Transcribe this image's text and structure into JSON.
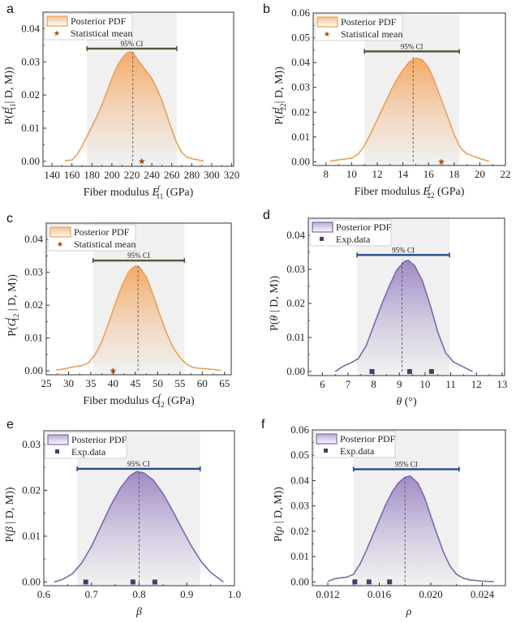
{
  "figure": {
    "legend_labels": {
      "pdf": "Posterior PDF",
      "mean": "Statistical mean",
      "exp": "Exp.data"
    },
    "ci_label": "95% CI",
    "colors": {
      "orange_line": "#e8a05a",
      "orange_fill": "#f5a862",
      "orange_star": "#a8561a",
      "purple_line": "#7a6aa8",
      "purple_fill": "#9c86c4",
      "purple_marker": "#4a3b6e",
      "ci_green": "#4f5a3a",
      "ci_blue": "#254a8a",
      "ci_band": "#f0f0f0"
    }
  },
  "chart_data": [
    {
      "panel": "a",
      "type": "area",
      "theme": "orange",
      "xlabel_main": "Fiber modulus ",
      "xlabel_sym": "E",
      "xlabel_sup": "f",
      "xlabel_sub": "11",
      "xlabel_unit": " (GPa)",
      "ylabel_pre": "P(",
      "ylabel_sym": "E",
      "ylabel_sup": "f",
      "ylabel_sub": "11",
      "ylabel_post": "| D, M))",
      "xlim": [
        131,
        322
      ],
      "ylim": [
        -0.0015,
        0.045
      ],
      "xticks": [
        140,
        160,
        180,
        200,
        220,
        240,
        260,
        280,
        300,
        320
      ],
      "xtick_labels": [
        "140",
        "160",
        "180",
        "200",
        "220",
        "240",
        "260",
        "280",
        "300",
        "320"
      ],
      "yticks": [
        0,
        0.01,
        0.02,
        0.03,
        0.04
      ],
      "ytick_labels": [
        "0.00",
        "0.01",
        "0.02",
        "0.03",
        "0.04"
      ],
      "ci": [
        175,
        265
      ],
      "ci_y": 0.034,
      "peak_x": 221,
      "marker_type": "star",
      "markers_x": [
        230
      ],
      "legend_labels": [
        "Posterior PDF",
        "Statistical mean"
      ],
      "curve": [
        [
          153,
          0.0002
        ],
        [
          160,
          0.0004
        ],
        [
          165,
          0.002
        ],
        [
          170,
          0.0045
        ],
        [
          175,
          0.0075
        ],
        [
          180,
          0.0105
        ],
        [
          185,
          0.0135
        ],
        [
          190,
          0.017
        ],
        [
          195,
          0.021
        ],
        [
          200,
          0.025
        ],
        [
          205,
          0.0285
        ],
        [
          210,
          0.031
        ],
        [
          215,
          0.0327
        ],
        [
          218,
          0.033
        ],
        [
          221,
          0.0328
        ],
        [
          225,
          0.031
        ],
        [
          230,
          0.029
        ],
        [
          235,
          0.027
        ],
        [
          240,
          0.025
        ],
        [
          245,
          0.022
        ],
        [
          250,
          0.0185
        ],
        [
          255,
          0.014
        ],
        [
          260,
          0.0095
        ],
        [
          265,
          0.0055
        ],
        [
          270,
          0.0027
        ],
        [
          275,
          0.0013
        ],
        [
          280,
          0.0008
        ],
        [
          285,
          0.0005
        ],
        [
          292,
          0.0001
        ]
      ]
    },
    {
      "panel": "b",
      "type": "area",
      "theme": "orange",
      "xlabel_main": "Fiber modulus ",
      "xlabel_sym": "E",
      "xlabel_sup": "f",
      "xlabel_sub": "22",
      "xlabel_unit": " (GPa)",
      "ylabel_pre": "P(",
      "ylabel_sym": "E",
      "ylabel_sup": "f",
      "ylabel_sub": "22",
      "ylabel_post": "| D, M))",
      "xlim": [
        7.0,
        22.0
      ],
      "ylim": [
        -0.0015,
        0.06
      ],
      "xticks": [
        8,
        10,
        12,
        14,
        16,
        18,
        20,
        22
      ],
      "xtick_labels": [
        "8",
        "10",
        "12",
        "14",
        "16",
        "18",
        "20",
        "22"
      ],
      "yticks": [
        0,
        0.01,
        0.02,
        0.03,
        0.04,
        0.05,
        0.06
      ],
      "ytick_labels": [
        "0.00",
        "0.01",
        "0.02",
        "0.03",
        "0.04",
        "0.05",
        "0.06"
      ],
      "ci": [
        11.0,
        18.4
      ],
      "ci_y": 0.0445,
      "peak_x": 14.8,
      "marker_type": "star",
      "markers_x": [
        17.0
      ],
      "legend_labels": [
        "Posterior PDF",
        "Statistical mean"
      ],
      "curve": [
        [
          8.3,
          0.0002
        ],
        [
          9.0,
          0.0008
        ],
        [
          9.5,
          0.0011
        ],
        [
          10.0,
          0.0015
        ],
        [
          10.5,
          0.003
        ],
        [
          11.0,
          0.0065
        ],
        [
          11.5,
          0.0115
        ],
        [
          12.0,
          0.017
        ],
        [
          12.5,
          0.0225
        ],
        [
          13.0,
          0.028
        ],
        [
          13.5,
          0.033
        ],
        [
          14.0,
          0.037
        ],
        [
          14.5,
          0.0403
        ],
        [
          15.0,
          0.0418
        ],
        [
          15.5,
          0.0412
        ],
        [
          16.0,
          0.038
        ],
        [
          16.5,
          0.032
        ],
        [
          17.0,
          0.025
        ],
        [
          17.5,
          0.018
        ],
        [
          18.0,
          0.011
        ],
        [
          18.5,
          0.0055
        ],
        [
          19.0,
          0.0032
        ],
        [
          19.5,
          0.0022
        ],
        [
          20.0,
          0.0013
        ],
        [
          20.7,
          0.0002
        ]
      ]
    },
    {
      "panel": "c",
      "type": "area",
      "theme": "orange",
      "xlabel_main": "Fiber modulus ",
      "xlabel_sym": "G",
      "xlabel_sup": "f",
      "xlabel_sub": "12",
      "xlabel_unit": " (GPa)",
      "ylabel_pre": "P(",
      "ylabel_sym": "G",
      "ylabel_sup": "f",
      "ylabel_sub": "12",
      "ylabel_post": " | D, M))",
      "xlim": [
        25.0,
        66.5
      ],
      "ylim": [
        -0.0012,
        0.045
      ],
      "xticks": [
        25,
        30,
        35,
        40,
        45,
        50,
        55,
        60,
        65
      ],
      "xtick_labels": [
        "25",
        "30",
        "35",
        "40",
        "45",
        "50",
        "55",
        "60",
        "65"
      ],
      "yticks": [
        0,
        0.01,
        0.02,
        0.03,
        0.04
      ],
      "ytick_labels": [
        "0.00",
        "0.01",
        "0.02",
        "0.03",
        "0.04"
      ],
      "ci": [
        35.5,
        56.0
      ],
      "ci_y": 0.0336,
      "peak_x": 45.6,
      "marker_type": "star",
      "markers_x": [
        40.0
      ],
      "legend_labels": [
        "Posterior PDF",
        "Statistical mean"
      ],
      "curve": [
        [
          27.2,
          0.0002
        ],
        [
          29.0,
          0.0006
        ],
        [
          31.0,
          0.0012
        ],
        [
          33.0,
          0.0016
        ],
        [
          34.5,
          0.0025
        ],
        [
          36.0,
          0.005
        ],
        [
          37.5,
          0.009
        ],
        [
          39.0,
          0.0145
        ],
        [
          40.5,
          0.0205
        ],
        [
          42.0,
          0.026
        ],
        [
          43.5,
          0.0302
        ],
        [
          45.0,
          0.032
        ],
        [
          46.0,
          0.0315
        ],
        [
          47.5,
          0.0285
        ],
        [
          49.0,
          0.023
        ],
        [
          50.5,
          0.017
        ],
        [
          52.0,
          0.0115
        ],
        [
          53.5,
          0.007
        ],
        [
          55.0,
          0.004
        ],
        [
          56.5,
          0.002
        ],
        [
          58.0,
          0.001
        ],
        [
          60.0,
          0.0007
        ],
        [
          62.0,
          0.0005
        ],
        [
          64.3,
          0.0001
        ]
      ]
    },
    {
      "panel": "d",
      "type": "area",
      "theme": "purple",
      "xlabel_main": "",
      "xlabel_sym": "θ",
      "xlabel_sup": "",
      "xlabel_sub": "",
      "xlabel_unit": " (°)",
      "ylabel_pre": "P(",
      "ylabel_sym": "θ",
      "ylabel_sup": "",
      "ylabel_sub": "",
      "ylabel_post": " | D, M))",
      "xlim": [
        5.45,
        13.1
      ],
      "ylim": [
        -0.0012,
        0.045
      ],
      "xticks": [
        6,
        7,
        8,
        9,
        10,
        11,
        12,
        13
      ],
      "xtick_labels": [
        "6",
        "7",
        "8",
        "9",
        "10",
        "11",
        "12",
        "13"
      ],
      "yticks": [
        0,
        0.01,
        0.02,
        0.03,
        0.04
      ],
      "ytick_labels": [
        "0.00",
        "0.01",
        "0.02",
        "0.03",
        "0.04"
      ],
      "ci": [
        7.35,
        10.95
      ],
      "ci_y": 0.0342,
      "peak_x": 9.1,
      "marker_type": "square",
      "markers_x": [
        7.93,
        9.4,
        10.25
      ],
      "legend_labels": [
        "Posterior PDF",
        "Exp.data"
      ],
      "curve": [
        [
          6.5,
          0.0
        ],
        [
          6.8,
          0.0015
        ],
        [
          7.1,
          0.0025
        ],
        [
          7.4,
          0.0038
        ],
        [
          7.7,
          0.0075
        ],
        [
          8.0,
          0.0135
        ],
        [
          8.3,
          0.0195
        ],
        [
          8.6,
          0.025
        ],
        [
          8.9,
          0.0298
        ],
        [
          9.2,
          0.0323
        ],
        [
          9.35,
          0.0326
        ],
        [
          9.6,
          0.031
        ],
        [
          9.9,
          0.0265
        ],
        [
          10.2,
          0.0195
        ],
        [
          10.5,
          0.0115
        ],
        [
          10.8,
          0.0055
        ],
        [
          11.1,
          0.0028
        ],
        [
          11.4,
          0.0017
        ],
        [
          11.85,
          0.0
        ]
      ]
    },
    {
      "panel": "e",
      "type": "area",
      "theme": "purple",
      "xlabel_main": "",
      "xlabel_sym": "β",
      "xlabel_sup": "",
      "xlabel_sub": "",
      "xlabel_unit": "",
      "ylabel_pre": "P(",
      "ylabel_sym": "β",
      "ylabel_sup": "",
      "ylabel_sub": "",
      "ylabel_post": " | D, M))",
      "xlim": [
        0.6,
        1.0
      ],
      "ylim": [
        -0.0008,
        0.033
      ],
      "xticks": [
        0.6,
        0.7,
        0.8,
        0.9,
        1.0
      ],
      "xtick_labels": [
        "0.6",
        "0.7",
        "0.8",
        "0.9",
        "1.0"
      ],
      "yticks": [
        0,
        0.01,
        0.02,
        0.03
      ],
      "ytick_labels": [
        "0.00",
        "0.01",
        "0.02",
        "0.03"
      ],
      "ci": [
        0.67,
        0.928
      ],
      "ci_y": 0.0247,
      "peak_x": 0.8,
      "marker_type": "square",
      "markers_x": [
        0.688,
        0.787,
        0.833
      ],
      "legend_labels": [
        "Posterior PDF",
        "Exp.data"
      ],
      "curve": [
        [
          0.622,
          0.0
        ],
        [
          0.64,
          0.0006
        ],
        [
          0.66,
          0.0018
        ],
        [
          0.68,
          0.0042
        ],
        [
          0.7,
          0.0078
        ],
        [
          0.72,
          0.0122
        ],
        [
          0.74,
          0.0166
        ],
        [
          0.76,
          0.0204
        ],
        [
          0.78,
          0.0231
        ],
        [
          0.795,
          0.0241
        ],
        [
          0.81,
          0.0238
        ],
        [
          0.83,
          0.0222
        ],
        [
          0.85,
          0.0193
        ],
        [
          0.87,
          0.0156
        ],
        [
          0.89,
          0.0116
        ],
        [
          0.91,
          0.0078
        ],
        [
          0.93,
          0.0045
        ],
        [
          0.95,
          0.0021
        ],
        [
          0.977,
          0.0
        ]
      ]
    },
    {
      "panel": "f",
      "type": "area",
      "theme": "purple",
      "xlabel_main": "",
      "xlabel_sym": "ρ",
      "xlabel_sup": "",
      "xlabel_sub": "",
      "xlabel_unit": "",
      "ylabel_pre": "P(",
      "ylabel_sym": "ρ",
      "ylabel_sup": "",
      "ylabel_sub": "",
      "ylabel_post": " | D, M))",
      "xlim": [
        0.0108,
        0.0258
      ],
      "ylim": [
        -0.0015,
        0.06
      ],
      "xticks": [
        0.012,
        0.016,
        0.02,
        0.024
      ],
      "xtick_labels": [
        "0.012",
        "0.016",
        "0.020",
        "0.024"
      ],
      "yticks": [
        0,
        0.01,
        0.02,
        0.03,
        0.04,
        0.05,
        0.06
      ],
      "ytick_labels": [
        "0.00",
        "0.01",
        "0.02",
        "0.03",
        "0.04",
        "0.05",
        "0.06"
      ],
      "ci": [
        0.014,
        0.0222
      ],
      "ci_y": 0.0445,
      "peak_x": 0.018,
      "marker_type": "square",
      "markers_x": [
        0.0141,
        0.0152,
        0.0168
      ],
      "legend_labels": [
        "Posterior PDF",
        "Exp.data"
      ],
      "curve": [
        [
          0.012,
          0.0002
        ],
        [
          0.0125,
          0.0012
        ],
        [
          0.013,
          0.0016
        ],
        [
          0.0135,
          0.0019
        ],
        [
          0.014,
          0.003
        ],
        [
          0.0145,
          0.007
        ],
        [
          0.015,
          0.0125
        ],
        [
          0.0155,
          0.0185
        ],
        [
          0.016,
          0.0245
        ],
        [
          0.0165,
          0.0305
        ],
        [
          0.017,
          0.0355
        ],
        [
          0.0175,
          0.0392
        ],
        [
          0.018,
          0.0413
        ],
        [
          0.0184,
          0.0418
        ],
        [
          0.019,
          0.039
        ],
        [
          0.0195,
          0.0335
        ],
        [
          0.02,
          0.026
        ],
        [
          0.0205,
          0.0185
        ],
        [
          0.021,
          0.0115
        ],
        [
          0.0215,
          0.0062
        ],
        [
          0.022,
          0.003
        ],
        [
          0.0225,
          0.0015
        ],
        [
          0.023,
          0.0008
        ],
        [
          0.024,
          0.0003
        ],
        [
          0.0249,
          0.0001
        ]
      ]
    }
  ]
}
